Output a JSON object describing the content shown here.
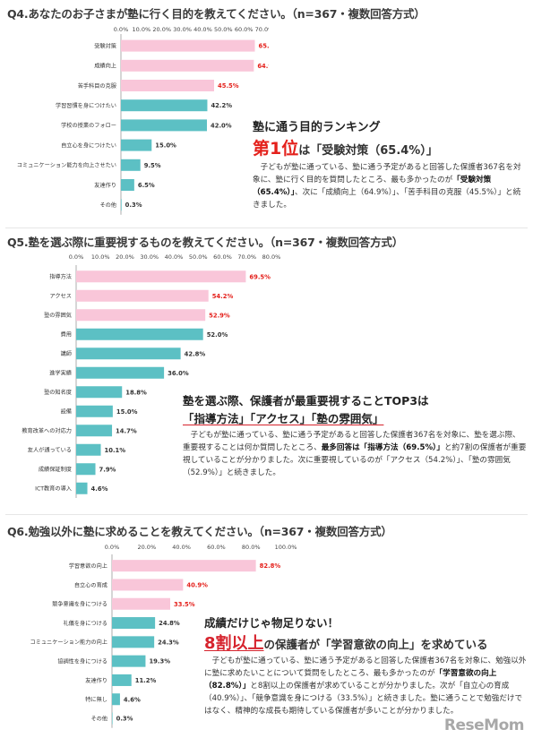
{
  "sections": [
    {
      "title": "Q4.あなたのお子さまが塾に行く目的を教えてください。（n=367・複数回答方式）",
      "callout": {
        "headline": "塾に通う目的ランキング",
        "rank_big": "第1位",
        "rank_rest": "は「受験対策（65.4%）」",
        "body": [
          {
            "t": "　子どもが塾に通っている、塾に通う予定があると回答した保護者367名を対象に、塾に行く目的を質問したところ、最も多かったのが"
          },
          {
            "t": "「受験対策（65.4%）」",
            "b": true
          },
          {
            "t": "、次に「成績向上（64.9%）」、「苦手科目の克服（45.5%）」と続きました。"
          }
        ]
      }
    },
    {
      "title": "Q5.塾を選ぶ際に重要視するものを教えてください。（n=367・複数回答方式）",
      "callout": {
        "headline": "塾を選ぶ際、保護者が最重要視することTOP3は",
        "headline2": "「指導方法」「アクセス」「塾の雰囲気」",
        "body": [
          {
            "t": "　子どもが塾に通っている、塾に通う予定があると回答した保護者367名を対象に、塾を選ぶ際、重要視することは何か質問したところ、"
          },
          {
            "t": "最多回答は「指導方法（69.5%）」",
            "b": true
          },
          {
            "t": "と約7割の保護者が重要視していることが分かりました。次に重要視しているのが「アクセス（54.2%）」、「塾の雰囲気（52.9%）」と続きました。"
          }
        ]
      }
    },
    {
      "title": "Q6.勉強以外に塾に求めることを教えてください。（n=367・複数回答方式）",
      "callout": {
        "headline": "成績だけじゃ物足りない！",
        "rank_big": "8割以上",
        "rank_rest": "の保護者が「学習意欲の向上」を求めている",
        "body": [
          {
            "t": "　子どもが塾に通っている、塾に通う予定があると回答した保護者367名を対象に、勉強以外に塾に求めたいことについて質問をしたところ、最も多かったのが"
          },
          {
            "t": "「学習意欲の向上（82.8%）」",
            "b": true
          },
          {
            "t": "と8割以上の保護者が求めていることが分かりました。次が「自立心の育成（40.9%）」、「競争意識を身につける（33.5%）」と続きました。塾に通うことで勉強だけではなく、精神的な成長も期待している保護者が多いことが分かりました。"
          }
        ]
      }
    }
  ],
  "colors": {
    "highlight_bar": "#f9c6d9",
    "bar": "#5cc0c4",
    "highlight_value": "#e4211c",
    "value": "#333333",
    "red": "#e4211c"
  },
  "chart_data": [
    {
      "type": "bar",
      "orientation": "horizontal",
      "categories": [
        "受験対策",
        "成績向上",
        "苦手科目の克服",
        "学習習慣を身につけたい",
        "学校の授業のフォロー",
        "自立心を身につけたい",
        "コミュニケーション能力を向上させたい",
        "友達作り",
        "その他"
      ],
      "values": [
        65.4,
        64.9,
        45.5,
        42.2,
        42.0,
        15.0,
        9.5,
        6.5,
        0.3
      ],
      "value_labels": [
        "65.4%",
        "64.9%",
        "45.5%",
        "42.2%",
        "42.0%",
        "15.0%",
        "9.5%",
        "6.5%",
        "0.3%"
      ],
      "highlight_count": 3,
      "xlim": [
        0,
        70
      ],
      "xticks": [
        "0.0%",
        "10.0%",
        "20.0%",
        "30.0%",
        "40.0%",
        "50.0%",
        "60.0%",
        "70.0%"
      ]
    },
    {
      "type": "bar",
      "orientation": "horizontal",
      "categories": [
        "指導方法",
        "アクセス",
        "塾の雰囲気",
        "費用",
        "講師",
        "進学実績",
        "塾の知名度",
        "設備",
        "教育改革への対応力",
        "友人が通っている",
        "成績保証制度",
        "ICT教育の導入"
      ],
      "values": [
        69.5,
        54.2,
        52.9,
        52.0,
        42.8,
        36.0,
        18.8,
        15.0,
        14.7,
        10.1,
        7.9,
        4.6
      ],
      "value_labels": [
        "69.5%",
        "54.2%",
        "52.9%",
        "52.0%",
        "42.8%",
        "36.0%",
        "18.8%",
        "15.0%",
        "14.7%",
        "10.1%",
        "7.9%",
        "4.6%"
      ],
      "highlight_count": 3,
      "xlim": [
        0,
        80
      ],
      "xticks": [
        "0.0%",
        "10.0%",
        "20.0%",
        "30.0%",
        "40.0%",
        "50.0%",
        "60.0%",
        "70.0%",
        "80.0%"
      ]
    },
    {
      "type": "bar",
      "orientation": "horizontal",
      "categories": [
        "学習意欲の向上",
        "自立心の育成",
        "競争意識を身につける",
        "礼儀を身につける",
        "コミュニケーション能力の向上",
        "協調性を身につける",
        "友達作り",
        "特に無し",
        "その他"
      ],
      "values": [
        82.8,
        40.9,
        33.5,
        24.8,
        24.3,
        19.3,
        11.2,
        4.6,
        0.3
      ],
      "value_labels": [
        "82.8%",
        "40.9%",
        "33.5%",
        "24.8%",
        "24.3%",
        "19.3%",
        "11.2%",
        "4.6%",
        "0.3%"
      ],
      "highlight_count": 3,
      "xlim": [
        0,
        100
      ],
      "xticks": [
        "0.0%",
        "20.0%",
        "40.0%",
        "60.0%",
        "80.0%",
        "100.0%"
      ]
    }
  ],
  "watermark": "ReseMom"
}
